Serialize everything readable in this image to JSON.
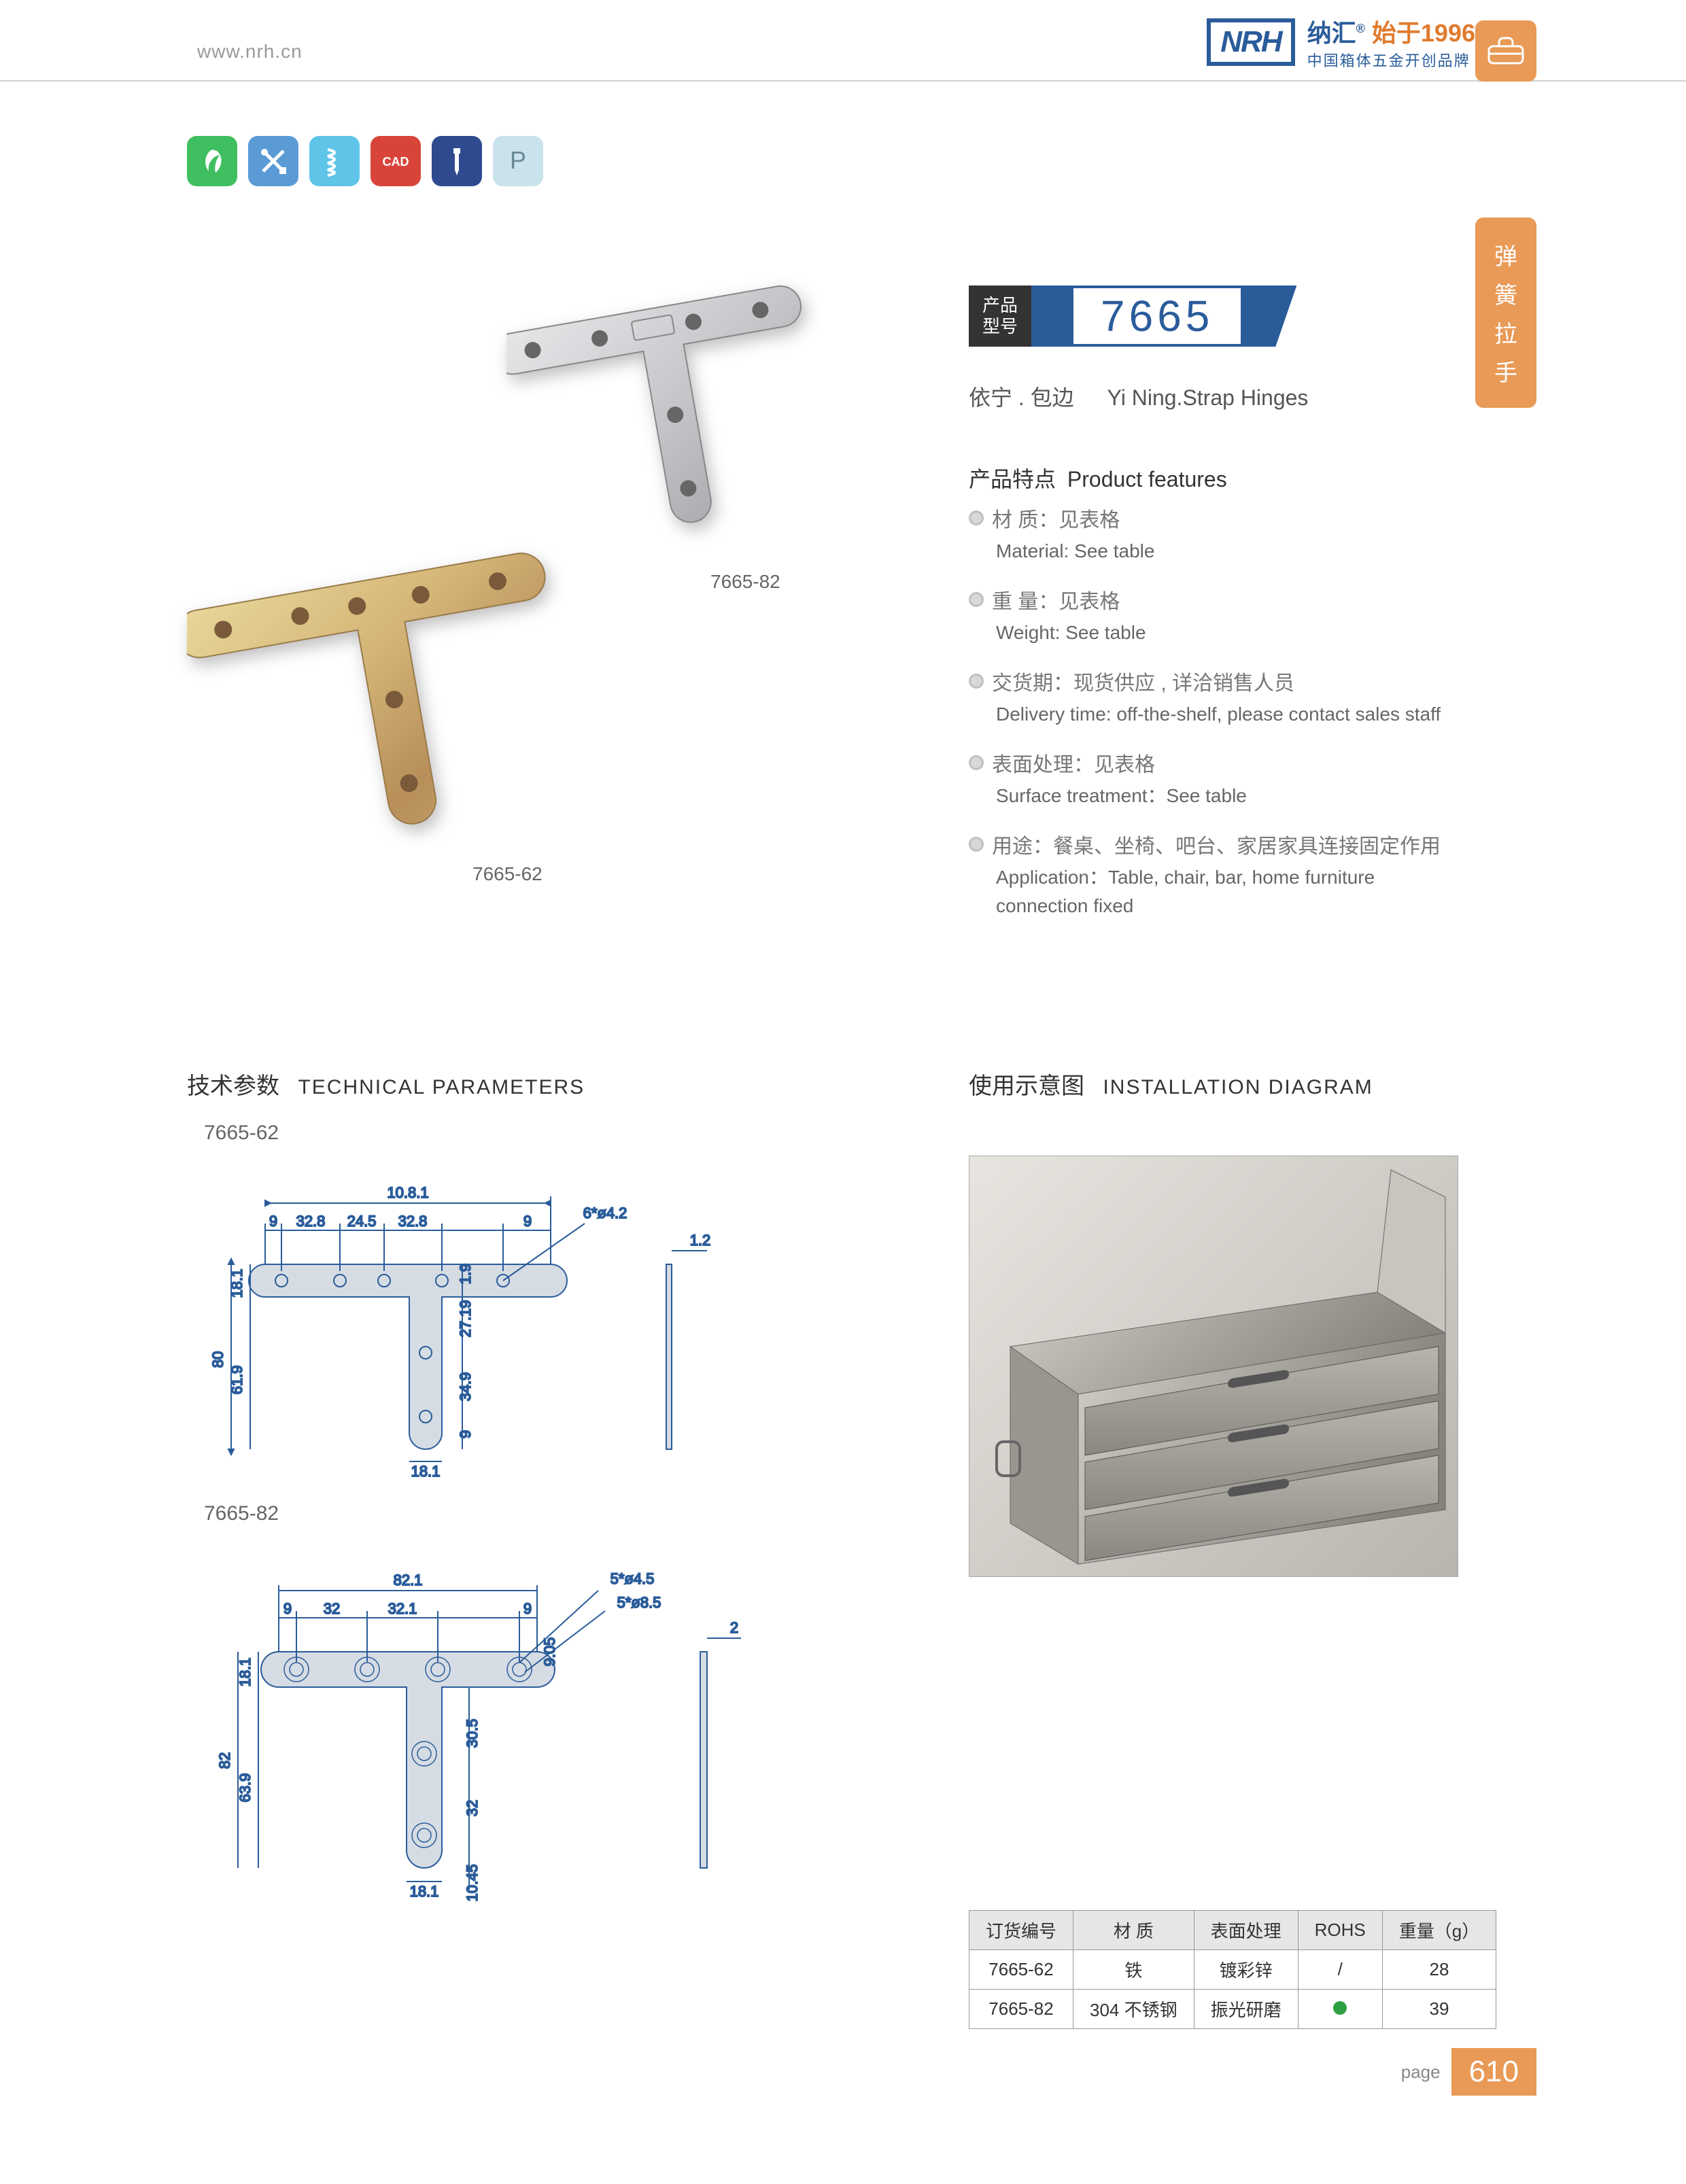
{
  "header": {
    "url": "www.nrh.cn",
    "logo_nrh": "NRH",
    "logo_cn": "纳汇",
    "logo_year": "始于1996",
    "logo_tagline": "中国箱体五金开创品牌"
  },
  "side_label_chars": [
    "弹",
    "簧",
    "拉",
    "手"
  ],
  "icon_row": [
    {
      "name": "eco-icon",
      "bg": "#3fbf5f"
    },
    {
      "name": "tools-icon",
      "bg": "#5a9bd5"
    },
    {
      "name": "spring-icon",
      "bg": "#5fc5e8"
    },
    {
      "name": "cad-icon",
      "bg": "#d9443a",
      "text": "CAD"
    },
    {
      "name": "screw-icon",
      "bg": "#2f4a8f"
    },
    {
      "name": "p-icon",
      "bg": "#c9e2ec",
      "text": "P"
    }
  ],
  "product": {
    "badge_label_l1": "产品",
    "badge_label_l2": "型号",
    "model": "7665",
    "subtitle_cn": "依宁 . 包边",
    "subtitle_en": "Yi Ning.Strap Hinges",
    "img_labels": {
      "a": "7665-82",
      "b": "7665-62"
    }
  },
  "features": {
    "title_cn": "产品特点",
    "title_en": "Product features",
    "items": [
      {
        "cn": "材    质：见表格",
        "en": "Material: See table"
      },
      {
        "cn": "重    量：见表格",
        "en": "Weight: See table"
      },
      {
        "cn": "交货期：现货供应 , 详洽销售人员",
        "en": "Delivery time: off-the-shelf, please contact sales staff"
      },
      {
        "cn": "表面处理：见表格",
        "en": "Surface treatment：See table"
      },
      {
        "cn": "用途：餐桌、坐椅、吧台、家居家具连接固定作用",
        "en": "Application：Table, chair, bar, home furniture connection fixed"
      }
    ]
  },
  "sections": {
    "tech_cn": "技术参数",
    "tech_en": "TECHNICAL PARAMETERS",
    "install_cn": "使用示意图",
    "install_en": "INSTALLATION DIAGRAM"
  },
  "drawings": [
    {
      "label": "7665-62",
      "overall_w": "10.8.1",
      "top_dims": [
        "9",
        "32.8",
        "24.5",
        "32.8",
        "9"
      ],
      "hole_note": "6*ø4.2",
      "thickness": "1.2",
      "left_h": "80",
      "left_sub": [
        "18.1",
        "61.9"
      ],
      "right_sub": [
        "1.9",
        "27.19",
        "34.9",
        "9"
      ],
      "stem_w": "18.1"
    },
    {
      "label": "7665-82",
      "overall_w": "82.1",
      "top_dims": [
        "9",
        "32",
        "32.1",
        "9"
      ],
      "hole_note1": "5*ø4.5",
      "hole_note2": "5*ø8.5",
      "thickness": "2",
      "extra_top": "9.05",
      "left_h": "82",
      "left_sub": [
        "18.1",
        "63.9"
      ],
      "right_sub": [
        "30.5",
        "32",
        "10.45"
      ],
      "stem_w": "18.1"
    }
  ],
  "spec_table": {
    "headers": [
      "订货编号",
      "材        质",
      "表面处理",
      "ROHS",
      "重量（g）"
    ],
    "rows": [
      {
        "code": "7665-62",
        "material": "铁",
        "surface": "镀彩锌",
        "rohs": "/",
        "weight": "28"
      },
      {
        "code": "7665-82",
        "material": "304 不锈钢",
        "surface": "振光研磨",
        "rohs": "dot",
        "weight": "39"
      }
    ]
  },
  "footer": {
    "page_label": "page",
    "page_num": "610"
  }
}
